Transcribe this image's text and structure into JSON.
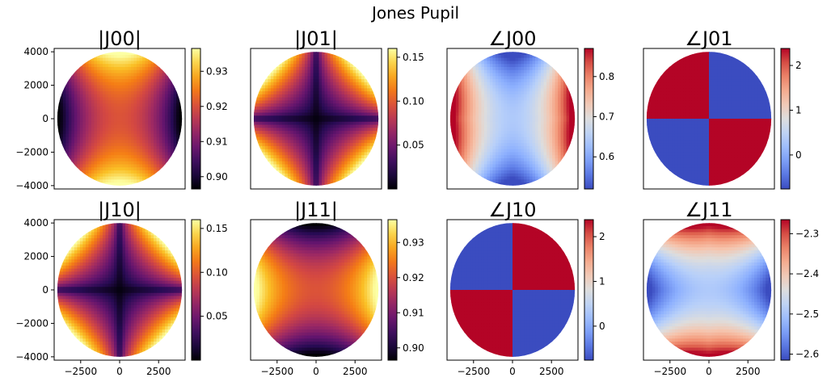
{
  "figure": {
    "title": "Jones Pupil"
  },
  "chart_data": [
    {
      "type": "heatmap",
      "title": "|J00|",
      "colormap": "inferno",
      "pattern": "mag_diag",
      "colorbar_ticks": [
        "0.90",
        "0.91",
        "0.92",
        "0.93"
      ],
      "colorbar_tick_values": [
        0.9,
        0.91,
        0.92,
        0.93
      ],
      "vrange": [
        0.8965,
        0.9365
      ],
      "xlim": [
        -4200,
        4200
      ],
      "ylim": [
        -4200,
        4200
      ],
      "yticks": [
        "4000",
        "2000",
        "0",
        "−2000",
        "−4000"
      ],
      "ytick_values": [
        4000,
        2000,
        0,
        -2000,
        -4000
      ],
      "xticks": [],
      "xtick_values": []
    },
    {
      "type": "heatmap",
      "title": "|J01|",
      "colormap": "inferno",
      "pattern": "mag_off",
      "colorbar_ticks": [
        "0.05",
        "0.10",
        "0.15"
      ],
      "colorbar_tick_values": [
        0.05,
        0.1,
        0.15
      ],
      "vrange": [
        0.0,
        0.16
      ],
      "xlim": [
        -4200,
        4200
      ],
      "ylim": [
        -4200,
        4200
      ],
      "yticks": [],
      "ytick_values": [],
      "xticks": [],
      "xtick_values": []
    },
    {
      "type": "heatmap",
      "title": "∠J00",
      "colormap": "coolwarm",
      "pattern": "phase_diag",
      "colorbar_ticks": [
        "0.6",
        "0.7",
        "0.8"
      ],
      "colorbar_tick_values": [
        0.6,
        0.7,
        0.8
      ],
      "vrange": [
        0.52,
        0.87
      ],
      "xlim": [
        -4200,
        4200
      ],
      "ylim": [
        -4200,
        4200
      ],
      "yticks": [],
      "ytick_values": [],
      "xticks": [],
      "xtick_values": []
    },
    {
      "type": "heatmap",
      "title": "∠J01",
      "colormap": "coolwarm",
      "pattern": "quad_a",
      "colorbar_ticks": [
        "0",
        "1",
        "2"
      ],
      "colorbar_tick_values": [
        0,
        1,
        2
      ],
      "vrange": [
        -0.76,
        2.38
      ],
      "xlim": [
        -4200,
        4200
      ],
      "ylim": [
        -4200,
        4200
      ],
      "yticks": [],
      "ytick_values": [],
      "xticks": [],
      "xtick_values": []
    },
    {
      "type": "heatmap",
      "title": "|J10|",
      "colormap": "inferno",
      "pattern": "mag_off",
      "colorbar_ticks": [
        "0.05",
        "0.10",
        "0.15"
      ],
      "colorbar_tick_values": [
        0.05,
        0.1,
        0.15
      ],
      "vrange": [
        0.0,
        0.16
      ],
      "xlim": [
        -4200,
        4200
      ],
      "ylim": [
        -4200,
        4200
      ],
      "yticks": [
        "4000",
        "2000",
        "0",
        "−2000",
        "−4000"
      ],
      "ytick_values": [
        4000,
        2000,
        0,
        -2000,
        -4000
      ],
      "xticks": [
        "−2500",
        "0",
        "2500"
      ],
      "xtick_values": [
        -2500,
        0,
        2500
      ]
    },
    {
      "type": "heatmap",
      "title": "|J11|",
      "colormap": "inferno",
      "pattern": "mag_diag_rot",
      "colorbar_ticks": [
        "0.90",
        "0.91",
        "0.92",
        "0.93"
      ],
      "colorbar_tick_values": [
        0.9,
        0.91,
        0.92,
        0.93
      ],
      "vrange": [
        0.8965,
        0.9365
      ],
      "xlim": [
        -4200,
        4200
      ],
      "ylim": [
        -4200,
        4200
      ],
      "yticks": [],
      "ytick_values": [],
      "xticks": [
        "−2500",
        "0",
        "2500"
      ],
      "xtick_values": [
        -2500,
        0,
        2500
      ]
    },
    {
      "type": "heatmap",
      "title": "∠J10",
      "colormap": "coolwarm",
      "pattern": "quad_b",
      "colorbar_ticks": [
        "0",
        "1",
        "2"
      ],
      "colorbar_tick_values": [
        0,
        1,
        2
      ],
      "vrange": [
        -0.76,
        2.38
      ],
      "xlim": [
        -4200,
        4200
      ],
      "ylim": [
        -4200,
        4200
      ],
      "yticks": [],
      "ytick_values": [],
      "xticks": [
        "−2500",
        "0",
        "2500"
      ],
      "xtick_values": [
        -2500,
        0,
        2500
      ]
    },
    {
      "type": "heatmap",
      "title": "∠J11",
      "colormap": "coolwarm",
      "pattern": "phase_j11",
      "colorbar_ticks": [
        "−2.3",
        "−2.4",
        "−2.5",
        "−2.6"
      ],
      "colorbar_tick_values": [
        -2.3,
        -2.4,
        -2.5,
        -2.6
      ],
      "vrange": [
        -2.615,
        -2.265
      ],
      "xlim": [
        -4200,
        4200
      ],
      "ylim": [
        -4200,
        4200
      ],
      "yticks": [],
      "ytick_values": [],
      "xticks": [
        "−2500",
        "0",
        "2500"
      ],
      "xtick_values": [
        -2500,
        0,
        2500
      ]
    }
  ]
}
